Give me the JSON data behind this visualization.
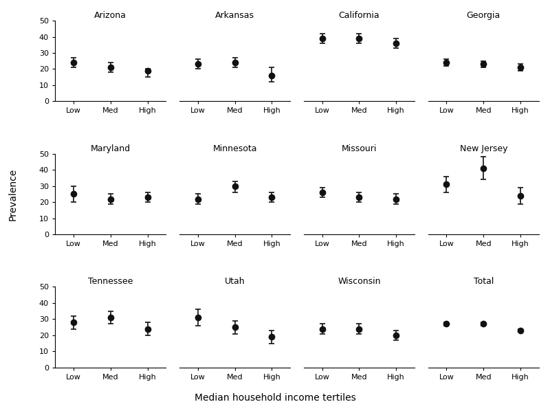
{
  "sites": [
    "Arizona",
    "Arkansas",
    "California",
    "Georgia",
    "Maryland",
    "Minnesota",
    "Missouri",
    "New Jersey",
    "Tennessee",
    "Utah",
    "Wisconsin",
    "Total"
  ],
  "categories": [
    "Low",
    "Med",
    "High"
  ],
  "data": {
    "Arizona": {
      "vals": [
        24,
        21,
        19
      ],
      "lo": [
        21,
        18,
        15
      ],
      "hi": [
        27,
        24,
        20
      ]
    },
    "Arkansas": {
      "vals": [
        23,
        24,
        16
      ],
      "lo": [
        20,
        21,
        12
      ],
      "hi": [
        26,
        27,
        21
      ]
    },
    "California": {
      "vals": [
        39,
        39,
        36
      ],
      "lo": [
        36,
        36,
        33
      ],
      "hi": [
        42,
        42,
        39
      ]
    },
    "Georgia": {
      "vals": [
        24,
        23,
        21
      ],
      "lo": [
        22,
        21,
        19
      ],
      "hi": [
        26,
        25,
        23
      ]
    },
    "Maryland": {
      "vals": [
        25,
        22,
        23
      ],
      "lo": [
        20,
        19,
        20
      ],
      "hi": [
        30,
        25,
        26
      ]
    },
    "Minnesota": {
      "vals": [
        22,
        30,
        23
      ],
      "lo": [
        19,
        26,
        20
      ],
      "hi": [
        25,
        33,
        26
      ]
    },
    "Missouri": {
      "vals": [
        26,
        23,
        22
      ],
      "lo": [
        23,
        20,
        19
      ],
      "hi": [
        29,
        26,
        25
      ]
    },
    "New Jersey": {
      "vals": [
        31,
        41,
        24
      ],
      "lo": [
        26,
        34,
        19
      ],
      "hi": [
        36,
        48,
        29
      ]
    },
    "Tennessee": {
      "vals": [
        28,
        31,
        24
      ],
      "lo": [
        24,
        27,
        20
      ],
      "hi": [
        32,
        35,
        28
      ]
    },
    "Utah": {
      "vals": [
        31,
        25,
        19
      ],
      "lo": [
        26,
        21,
        15
      ],
      "hi": [
        36,
        29,
        23
      ]
    },
    "Wisconsin": {
      "vals": [
        24,
        24,
        20
      ],
      "lo": [
        21,
        21,
        17
      ],
      "hi": [
        27,
        27,
        23
      ]
    },
    "Total": {
      "vals": [
        27,
        27,
        23
      ],
      "lo": [
        26,
        26,
        22
      ],
      "hi": [
        28,
        28,
        24
      ]
    }
  },
  "ylim": [
    0,
    50
  ],
  "yticks": [
    0,
    10,
    20,
    30,
    40,
    50
  ],
  "ylabel": "Prevalence",
  "xlabel": "Median household income tertiles",
  "marker_color": "#111111",
  "marker_size": 6,
  "capsize": 3,
  "elinewidth": 1.2,
  "capthick": 1.2,
  "background_color": "#ffffff",
  "title_fontsize": 9,
  "tick_fontsize": 8,
  "axis_label_fontsize": 10
}
